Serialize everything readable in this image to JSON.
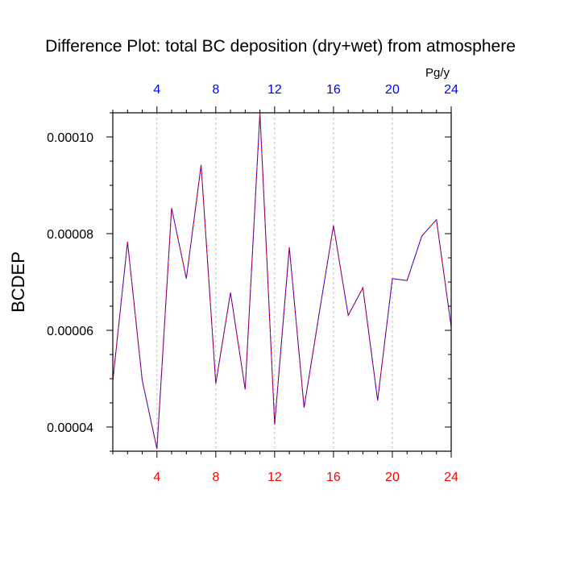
{
  "chart_data": {
    "type": "line",
    "title": "Difference Plot: total BC deposition (dry+wet) from atmosphere",
    "ylabel": "BCDEP",
    "units": "Pg/y",
    "xlim": [
      1,
      24
    ],
    "ylim": [
      3.5e-05,
      0.000105
    ],
    "x_ticks": [
      4,
      8,
      12,
      16,
      20,
      24
    ],
    "x_tick_labels": [
      "4",
      "8",
      "12",
      "16",
      "20",
      "24"
    ],
    "y_ticks": [
      4e-05,
      6e-05,
      8e-05,
      0.0001
    ],
    "y_tick_labels": [
      "0.00004",
      "0.00006",
      "0.00008",
      "0.00010"
    ],
    "grid": "vertical-dashed",
    "colors": {
      "bottom_axis_labels": "#ff0000",
      "top_axis_labels": "#0000ff",
      "series_a": "#0000ff",
      "series_b": "#ff0000"
    },
    "x": [
      1,
      2,
      3,
      4,
      5,
      6,
      7,
      8,
      9,
      10,
      11,
      12,
      13,
      14,
      15,
      16,
      17,
      18,
      19,
      20,
      21,
      22,
      23,
      24
    ],
    "series": [
      {
        "values": [
          4.95e-05,
          7.83e-05,
          4.97e-05,
          3.55e-05,
          8.53e-05,
          7.07e-05,
          9.42e-05,
          4.9e-05,
          6.78e-05,
          4.78e-05,
          0.000105,
          4.05e-05,
          7.72e-05,
          4.4e-05,
          6.3e-05,
          8.17e-05,
          6.31e-05,
          6.88e-05,
          4.55e-05,
          7.07e-05,
          7.03e-05,
          7.95e-05,
          8.29e-05,
          6.07e-05
        ]
      },
      {
        "values": [
          4.95e-05,
          7.83e-05,
          4.97e-05,
          3.55e-05,
          8.53e-05,
          7.07e-05,
          9.42e-05,
          4.9e-05,
          6.78e-05,
          4.78e-05,
          0.000105,
          4.05e-05,
          7.72e-05,
          4.4e-05,
          6.3e-05,
          8.17e-05,
          6.31e-05,
          6.88e-05,
          4.55e-05,
          7.07e-05,
          7.03e-05,
          7.95e-05,
          8.29e-05,
          6.07e-05
        ]
      }
    ]
  }
}
